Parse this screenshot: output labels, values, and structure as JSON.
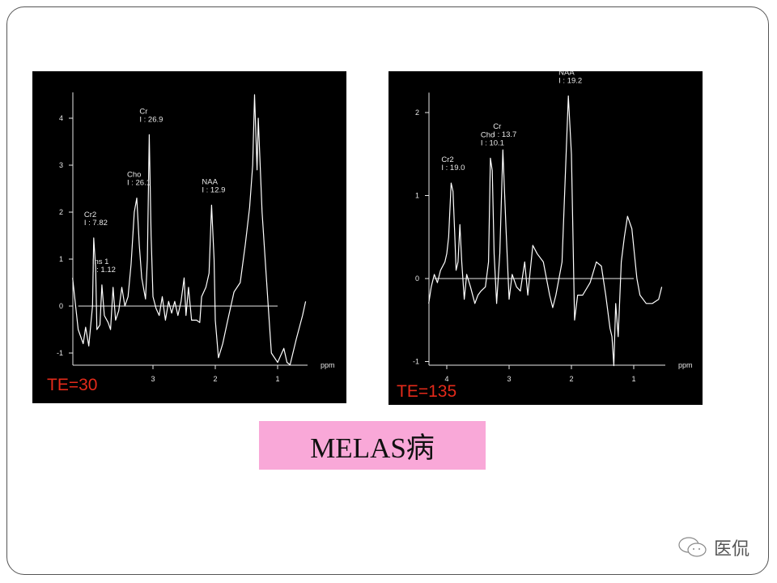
{
  "slide": {
    "caption": "MELAS病",
    "caption_bg": "#f9a8d8",
    "watermark": "医侃",
    "watermark_icon": "wechat-icon"
  },
  "chart_data": [
    {
      "type": "line",
      "label": "TE=30",
      "xlabel": "ppm",
      "x_ticks": [
        "3",
        "2",
        "1"
      ],
      "y_ticks": [
        "4",
        "3",
        "2",
        "1",
        "0",
        "-1"
      ],
      "xlim": [
        4.3,
        0.5
      ],
      "ylim": [
        -1.25,
        4.55
      ],
      "x_reversed": true,
      "peak_labels": [
        {
          "name": "Cr2",
          "integral": "I : 7.82",
          "ppm": 3.95,
          "y": 1.45
        },
        {
          "name": "Ins 1",
          "integral": "I : 1.12",
          "ppm": 3.82,
          "y": 0.45
        },
        {
          "name": "Cho",
          "integral": "I : 26.1",
          "ppm": 3.26,
          "y": 2.3
        },
        {
          "name": "Cr",
          "integral": "I : 26.9",
          "ppm": 3.06,
          "y": 3.65
        },
        {
          "name": "NAA",
          "integral": "I : 12.9",
          "ppm": 2.06,
          "y": 2.15
        }
      ],
      "baseline": [
        4.2,
        1.0
      ],
      "x": [
        4.29,
        4.2,
        4.12,
        4.08,
        4.03,
        3.97,
        3.95,
        3.92,
        3.9,
        3.85,
        3.82,
        3.78,
        3.72,
        3.68,
        3.64,
        3.6,
        3.55,
        3.5,
        3.45,
        3.4,
        3.35,
        3.3,
        3.26,
        3.22,
        3.18,
        3.14,
        3.12,
        3.09,
        3.06,
        3.03,
        3.0,
        2.95,
        2.9,
        2.85,
        2.8,
        2.75,
        2.7,
        2.65,
        2.6,
        2.55,
        2.5,
        2.47,
        2.43,
        2.38,
        2.3,
        2.25,
        2.22,
        2.15,
        2.1,
        2.06,
        2.02,
        2.0,
        1.95,
        1.88,
        1.8,
        1.7,
        1.6,
        1.52,
        1.45,
        1.4,
        1.37,
        1.33,
        1.31,
        1.25,
        1.15,
        1.1,
        1.0,
        0.9,
        0.85,
        0.8,
        0.7,
        0.6,
        0.55
      ],
      "y": [
        0.6,
        -0.5,
        -0.8,
        -0.45,
        -0.85,
        0.0,
        1.45,
        0.8,
        -0.5,
        -0.4,
        0.45,
        -0.2,
        -0.35,
        -0.5,
        0.4,
        -0.3,
        -0.1,
        0.4,
        0.0,
        0.2,
        0.9,
        2.0,
        2.3,
        1.3,
        0.6,
        0.3,
        0.15,
        1.0,
        3.65,
        1.5,
        0.2,
        -0.05,
        -0.2,
        0.2,
        -0.3,
        0.1,
        -0.15,
        0.1,
        -0.2,
        0.1,
        0.6,
        -0.2,
        0.4,
        -0.3,
        -0.3,
        -0.35,
        0.2,
        0.4,
        0.7,
        2.15,
        1.0,
        -0.3,
        -1.1,
        -0.8,
        -0.3,
        0.3,
        0.5,
        1.3,
        2.1,
        3.0,
        4.5,
        2.9,
        4.0,
        2.0,
        0.0,
        -1.0,
        -1.2,
        -0.9,
        -1.2,
        -1.25,
        -0.7,
        -0.2,
        0.1
      ]
    },
    {
      "type": "line",
      "label": "TE=135",
      "xlabel": "ppm",
      "x_ticks": [
        "4",
        "3",
        "2",
        "1"
      ],
      "y_ticks": [
        "2",
        "1",
        "0",
        "-1"
      ],
      "xlim": [
        4.3,
        0.5
      ],
      "ylim": [
        -1.05,
        2.24
      ],
      "x_reversed": true,
      "peak_labels": [
        {
          "name": "Cr2",
          "integral": "I : 19.0",
          "ppm": 3.93,
          "y": 1.15
        },
        {
          "name": "Cho",
          "integral": "I : 10.1",
          "ppm": 3.3,
          "y": 1.45
        },
        {
          "name": "Cr",
          "integral": "I : 13.7",
          "ppm": 3.1,
          "y": 1.55
        },
        {
          "name": "NAA",
          "integral": "I : 19.2",
          "ppm": 2.05,
          "y": 2.2
        }
      ],
      "baseline": [
        4.2,
        1.0
      ],
      "x": [
        4.29,
        4.25,
        4.2,
        4.15,
        4.1,
        4.03,
        4.0,
        3.97,
        3.93,
        3.9,
        3.87,
        3.85,
        3.82,
        3.79,
        3.76,
        3.72,
        3.68,
        3.62,
        3.55,
        3.5,
        3.45,
        3.38,
        3.33,
        3.3,
        3.27,
        3.24,
        3.2,
        3.15,
        3.1,
        3.05,
        3.0,
        2.95,
        2.88,
        2.82,
        2.75,
        2.7,
        2.62,
        2.55,
        2.45,
        2.35,
        2.3,
        2.25,
        2.15,
        2.05,
        2.0,
        1.95,
        1.9,
        1.82,
        1.7,
        1.6,
        1.52,
        1.45,
        1.38,
        1.35,
        1.32,
        1.29,
        1.25,
        1.2,
        1.15,
        1.1,
        1.03,
        0.95,
        0.9,
        0.8,
        0.7,
        0.6,
        0.55
      ],
      "y": [
        -0.3,
        -0.1,
        0.05,
        -0.05,
        0.1,
        0.2,
        0.3,
        0.5,
        1.15,
        1.05,
        0.5,
        0.1,
        0.2,
        0.65,
        0.2,
        -0.25,
        0.05,
        -0.1,
        -0.3,
        -0.2,
        -0.15,
        -0.1,
        0.2,
        1.45,
        1.3,
        0.3,
        -0.3,
        0.3,
        1.55,
        0.6,
        -0.25,
        0.05,
        -0.1,
        -0.15,
        0.2,
        -0.2,
        0.4,
        0.3,
        0.2,
        -0.2,
        -0.35,
        -0.2,
        0.2,
        2.2,
        1.5,
        -0.5,
        -0.2,
        -0.2,
        -0.05,
        0.2,
        0.15,
        -0.2,
        -0.6,
        -0.7,
        -1.05,
        -0.3,
        -0.7,
        0.2,
        0.5,
        0.75,
        0.6,
        0.0,
        -0.2,
        -0.3,
        -0.3,
        -0.25,
        -0.1
      ]
    }
  ]
}
